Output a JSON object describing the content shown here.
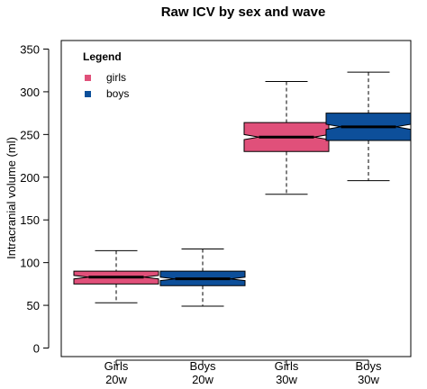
{
  "chart_data": {
    "type": "box",
    "title": "Raw ICV by sex and wave",
    "ylabel": "Intracranial volume (ml)",
    "xlabel": "",
    "ylim": [
      -10,
      360
    ],
    "yticks": [
      0,
      50,
      100,
      150,
      200,
      250,
      300,
      350
    ],
    "grid": false,
    "legend": {
      "title": "Legend",
      "position": "top-left",
      "entries": [
        {
          "label": "girls",
          "color": "#e0507a"
        },
        {
          "label": "boys",
          "color": "#0d4f9a"
        }
      ]
    },
    "categories": [
      {
        "line1": "Girls",
        "line2": "20w"
      },
      {
        "line1": "Boys",
        "line2": "20w"
      },
      {
        "line1": "Girls",
        "line2": "30w"
      },
      {
        "line1": "Boys",
        "line2": "30w"
      }
    ],
    "boxes": [
      {
        "group": "girls",
        "whisker_low": 53,
        "q1": 75,
        "median": 83,
        "q3": 90,
        "whisker_high": 114,
        "notch": [
          81,
          85
        ]
      },
      {
        "group": "boys",
        "whisker_low": 49,
        "q1": 73,
        "median": 81,
        "q3": 90,
        "whisker_high": 116,
        "notch": [
          79,
          83
        ]
      },
      {
        "group": "girls",
        "whisker_low": 180,
        "q1": 230,
        "median": 247,
        "q3": 264,
        "whisker_high": 312,
        "notch": [
          244,
          250
        ]
      },
      {
        "group": "boys",
        "whisker_low": 196,
        "q1": 243,
        "median": 259,
        "q3": 275,
        "whisker_high": 323,
        "notch": [
          256,
          262
        ]
      }
    ]
  }
}
